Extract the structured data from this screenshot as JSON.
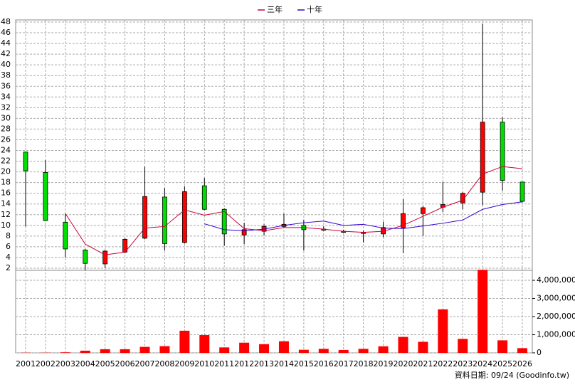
{
  "chart_data": {
    "type": "candlestick",
    "categories": [
      "2001",
      "2002",
      "2003",
      "2004",
      "2005",
      "2006",
      "2007",
      "2008",
      "2009",
      "2010",
      "2011",
      "2012",
      "2013",
      "2014",
      "2015",
      "2016",
      "2017",
      "2018",
      "2019",
      "2020",
      "2021",
      "2022",
      "2023",
      "2024",
      "2025",
      "2026"
    ],
    "open": [
      23.7,
      19.9,
      10.6,
      5.4,
      2.8,
      5.0,
      7.6,
      15.3,
      6.8,
      17.4,
      13.0,
      8.2,
      8.9,
      9.8,
      10.0,
      9.3,
      8.9,
      8.7,
      8.4,
      9.6,
      12.2,
      13.4,
      14.2,
      16.2,
      29.3,
      18.1
    ],
    "high": [
      23.8,
      22.2,
      12.2,
      5.6,
      5.4,
      7.6,
      21.0,
      17.0,
      17.3,
      18.9,
      13.2,
      10.5,
      10.2,
      12.2,
      11.0,
      9.8,
      9.2,
      9.0,
      10.7,
      14.9,
      13.6,
      18.1,
      16.2,
      47.7,
      30.2,
      18.1
    ],
    "low": [
      9.8,
      10.8,
      4.0,
      1.6,
      2.0,
      4.8,
      7.4,
      5.3,
      6.6,
      12.8,
      6.2,
      6.5,
      8.1,
      9.5,
      5.3,
      9.0,
      8.6,
      6.8,
      7.8,
      4.8,
      8.0,
      12.5,
      13.0,
      13.8,
      16.5,
      14.3
    ],
    "close": [
      20.2,
      10.9,
      5.6,
      2.9,
      5.2,
      7.4,
      15.4,
      6.6,
      16.3,
      13.0,
      8.4,
      9.2,
      9.8,
      10.2,
      9.2,
      9.3,
      8.9,
      8.7,
      9.6,
      12.2,
      13.3,
      13.9,
      16.0,
      29.3,
      18.4,
      14.5
    ],
    "up_color": "#ff0000",
    "down_color": "#00dd00",
    "ylim": [
      1.6,
      48.4
    ],
    "yticks": [
      2,
      4,
      6,
      8,
      10,
      12,
      14,
      16,
      18,
      20,
      22,
      24,
      26,
      28,
      30,
      32,
      34,
      36,
      38,
      40,
      42,
      44,
      46,
      48
    ],
    "grid": true,
    "lines": [
      {
        "name": "三年",
        "color": "#cc0033",
        "values": [
          null,
          null,
          12.2,
          6.5,
          4.5,
          5.0,
          9.5,
          9.8,
          12.9,
          11.9,
          12.6,
          9.4,
          9.0,
          9.6,
          9.6,
          9.3,
          8.9,
          8.7,
          8.9,
          10.0,
          11.7,
          13.4,
          14.7,
          19.6,
          21.0,
          20.6
        ]
      },
      {
        "name": "十年",
        "color": "#3300cc",
        "values": [
          null,
          null,
          null,
          null,
          null,
          null,
          null,
          null,
          null,
          10.3,
          9.2,
          9.0,
          9.3,
          10.0,
          10.5,
          10.8,
          10.0,
          10.2,
          9.5,
          9.4,
          9.9,
          10.4,
          11.0,
          13.0,
          13.9,
          14.4
        ]
      }
    ],
    "volume": {
      "type": "bar",
      "color": "#ff0000",
      "values": [
        10000,
        10000,
        30000,
        120000,
        200000,
        200000,
        330000,
        370000,
        1220000,
        980000,
        300000,
        560000,
        480000,
        640000,
        170000,
        220000,
        160000,
        220000,
        360000,
        880000,
        610000,
        2400000,
        770000,
        4580000,
        690000,
        260000
      ],
      "ylim": [
        0,
        4550000
      ],
      "yticks": [
        0,
        {
          "value": 1000000,
          "label": "1,000,000"
        },
        {
          "value": 2000000,
          "label": "2,000,000"
        },
        {
          "value": 3000000,
          "label": "3,000,000"
        },
        {
          "value": 4000000,
          "label": "4,000,000"
        }
      ]
    },
    "footer": "資料日期: 09/24  (Goodinfo.tw)"
  }
}
